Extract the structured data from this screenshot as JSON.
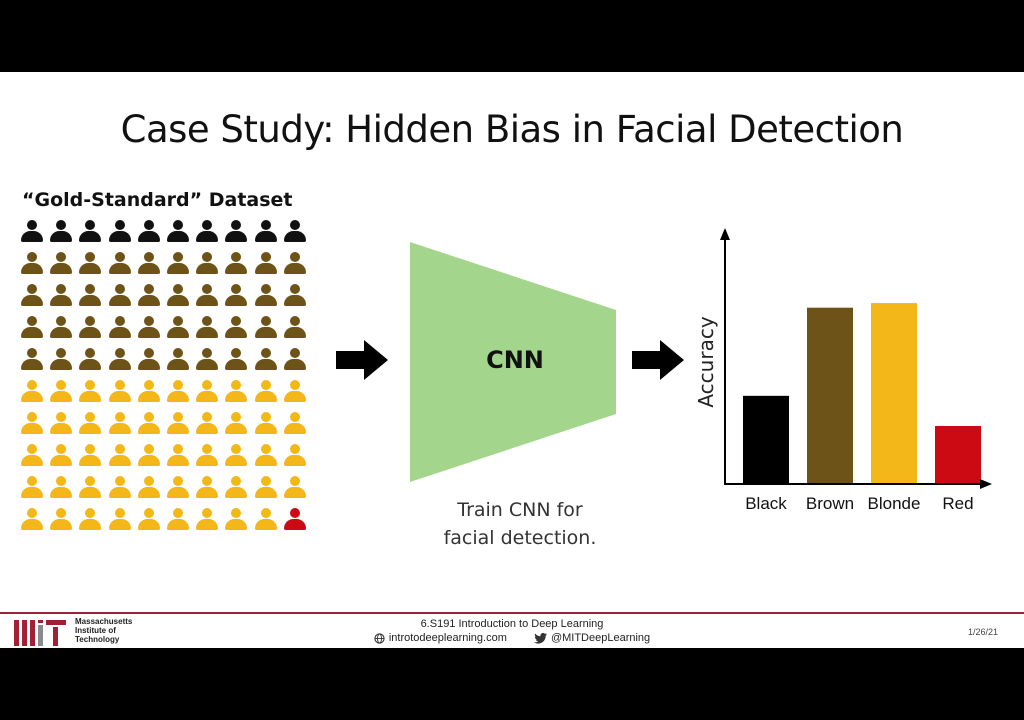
{
  "slide": {
    "title": "Case Study: Hidden Bias in Facial Detection",
    "dataset_label": "“Gold-Standard” Dataset",
    "cnn_label": "CNN",
    "caption_lines": [
      "Train CNN for",
      "facial detection."
    ]
  },
  "dataset_grid": {
    "columns": 10,
    "rows": [
      "black",
      "brown",
      "brown",
      "brown",
      "brown",
      "blonde",
      "blonde",
      "blonde",
      "blonde",
      "blonde-red"
    ],
    "colors": {
      "black": "#111111",
      "brown": "#6e5318",
      "blonde": "#f3b71a",
      "red": "#cc0a14"
    }
  },
  "chart_data": {
    "type": "bar",
    "categories": [
      "Black",
      "Brown",
      "Blonde",
      "Red"
    ],
    "values": [
      38,
      76,
      78,
      25
    ],
    "colors": [
      "#000000",
      "#6e5318",
      "#f3b71a",
      "#cc0a14"
    ],
    "ylabel": "Accuracy",
    "xlabel": "",
    "ylim": [
      0,
      100
    ]
  },
  "footer": {
    "org_lines": [
      "Massachusetts",
      "Institute of",
      "Technology"
    ],
    "course": "6.S191 Introduction to Deep Learning",
    "website": "introtodeeplearning.com",
    "twitter": "@MITDeepLearning",
    "date": "1/26/21",
    "accent_color": "#a31f34"
  }
}
